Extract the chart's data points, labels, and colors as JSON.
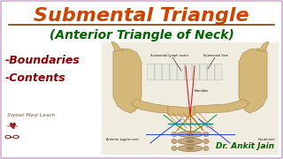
{
  "bg_color": "#ffffff",
  "border_color": "#c8a0c8",
  "title1": "Submental Triangle",
  "title1_color": "#cc4400",
  "title1_underline_color": "#8b3a00",
  "title2": "(Anterior Triangle of Neck)",
  "title2_color": "#006400",
  "bullet1": "-Boundaries",
  "bullet2": "-Contents",
  "bullets_color": "#8b0000",
  "brand_text": "Sweet Med Learn",
  "brand_color": "#8b5a2b",
  "doctor_text": "Dr. Ankit Jain",
  "doctor_color": "#006400",
  "bone_color": "#d4b87a",
  "bone_edge": "#b09050",
  "tooth_color": "#e8e8dc",
  "tooth_edge": "#aaaaaa",
  "vert_color": "#c8aa80",
  "vert_edge": "#907040",
  "muscle_color": "#cc8844",
  "label_color": "#111111",
  "line_red": "#cc2222",
  "line_blue": "#2244cc",
  "line_green": "#228822",
  "line_orange": "#cc6600",
  "line_cyan": "#008888"
}
